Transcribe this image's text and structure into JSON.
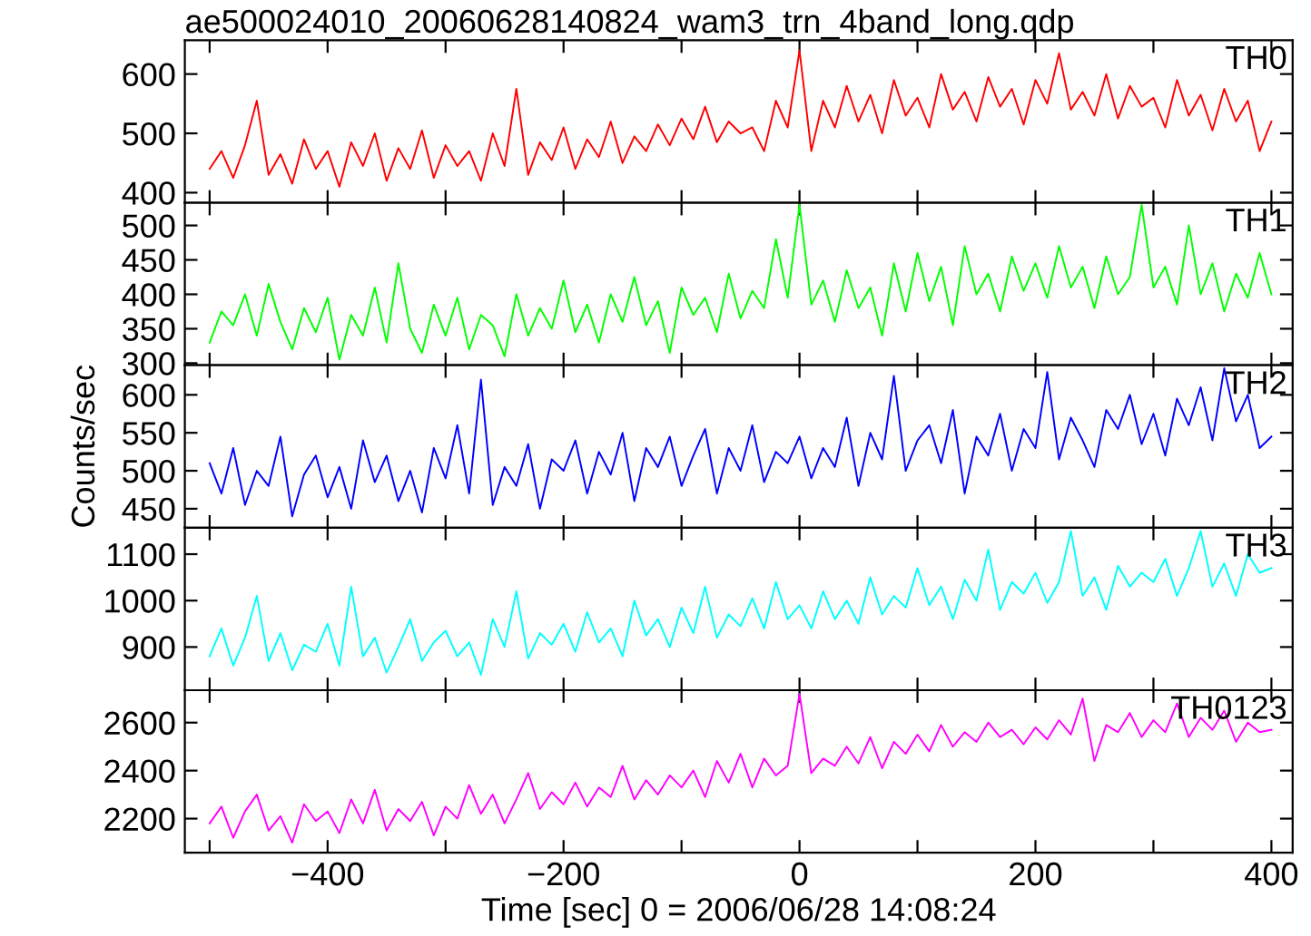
{
  "chart_data": [
    {
      "type": "line",
      "title": "ae500024010_20060628140824_wam3_trn_4band_long.qdp",
      "tick_labels": "y",
      "x": [
        -500,
        -490,
        -480,
        -470,
        -460,
        -450,
        -440,
        -430,
        -420,
        -410,
        -400,
        -390,
        -380,
        -370,
        -360,
        -350,
        -340,
        -330,
        -320,
        -310,
        -300,
        -290,
        -280,
        -270,
        -260,
        -250,
        -240,
        -230,
        -220,
        -210,
        -200,
        -190,
        -180,
        -170,
        -160,
        -150,
        -140,
        -130,
        -120,
        -110,
        -100,
        -90,
        -80,
        -70,
        -60,
        -50,
        -40,
        -30,
        -20,
        -10,
        0,
        10,
        20,
        30,
        40,
        50,
        60,
        70,
        80,
        90,
        100,
        110,
        120,
        130,
        140,
        150,
        160,
        170,
        180,
        190,
        200,
        210,
        220,
        230,
        240,
        250,
        260,
        270,
        280,
        290,
        300,
        310,
        320,
        330,
        340,
        350,
        360,
        370,
        380,
        390,
        400
      ],
      "xlim": [
        -521,
        418
      ],
      "xticks": [
        -500,
        -400,
        -300,
        -200,
        -100,
        0,
        100,
        200,
        300,
        400
      ],
      "ylim": [
        383,
        657
      ],
      "yticks": [
        400,
        500,
        600
      ],
      "series": [
        {
          "name": "TH0",
          "color": "#ff0000",
          "values": [
            440,
            470,
            425,
            480,
            555,
            430,
            465,
            415,
            490,
            440,
            470,
            410,
            485,
            445,
            500,
            420,
            475,
            440,
            505,
            425,
            480,
            445,
            470,
            420,
            500,
            445,
            575,
            430,
            485,
            455,
            510,
            440,
            490,
            460,
            520,
            450,
            495,
            470,
            515,
            480,
            525,
            490,
            545,
            485,
            520,
            500,
            510,
            470,
            555,
            510,
            640,
            470,
            555,
            510,
            580,
            520,
            565,
            500,
            590,
            530,
            560,
            510,
            600,
            540,
            570,
            520,
            595,
            545,
            575,
            515,
            590,
            550,
            635,
            540,
            570,
            530,
            600,
            525,
            580,
            545,
            560,
            510,
            590,
            530,
            565,
            505,
            575,
            520,
            555,
            470,
            520
          ]
        }
      ]
    },
    {
      "type": "line",
      "tick_labels": "y",
      "x": [
        -500,
        -490,
        -480,
        -470,
        -460,
        -450,
        -440,
        -430,
        -420,
        -410,
        -400,
        -390,
        -380,
        -370,
        -360,
        -350,
        -340,
        -330,
        -320,
        -310,
        -300,
        -290,
        -280,
        -270,
        -260,
        -250,
        -240,
        -230,
        -220,
        -210,
        -200,
        -190,
        -180,
        -170,
        -160,
        -150,
        -140,
        -130,
        -120,
        -110,
        -100,
        -90,
        -80,
        -70,
        -60,
        -50,
        -40,
        -30,
        -20,
        -10,
        0,
        10,
        20,
        30,
        40,
        50,
        60,
        70,
        80,
        90,
        100,
        110,
        120,
        130,
        140,
        150,
        160,
        170,
        180,
        190,
        200,
        210,
        220,
        230,
        240,
        250,
        260,
        270,
        280,
        290,
        300,
        310,
        320,
        330,
        340,
        350,
        360,
        370,
        380,
        390,
        400
      ],
      "xlim": [
        -521,
        418
      ],
      "xticks": [
        -500,
        -400,
        -300,
        -200,
        -100,
        0,
        100,
        200,
        300,
        400
      ],
      "ylim": [
        297,
        533
      ],
      "yticks": [
        300,
        350,
        400,
        450,
        500
      ],
      "series": [
        {
          "name": "TH1",
          "color": "#00ff00",
          "values": [
            330,
            375,
            355,
            400,
            340,
            415,
            360,
            320,
            380,
            345,
            395,
            305,
            370,
            340,
            410,
            330,
            445,
            350,
            315,
            385,
            340,
            395,
            320,
            370,
            355,
            310,
            400,
            340,
            380,
            350,
            420,
            345,
            385,
            330,
            400,
            360,
            425,
            355,
            390,
            315,
            410,
            370,
            395,
            345,
            430,
            365,
            405,
            380,
            480,
            395,
            530,
            385,
            420,
            360,
            435,
            380,
            410,
            340,
            445,
            375,
            460,
            390,
            440,
            355,
            470,
            400,
            430,
            375,
            455,
            405,
            445,
            395,
            470,
            410,
            440,
            380,
            455,
            400,
            425,
            530,
            410,
            440,
            385,
            500,
            400,
            445,
            375,
            430,
            395,
            460,
            400
          ]
        }
      ]
    },
    {
      "type": "line",
      "tick_labels": "y",
      "ylabel": "Counts/sec",
      "x": [
        -500,
        -490,
        -480,
        -470,
        -460,
        -450,
        -440,
        -430,
        -420,
        -410,
        -400,
        -390,
        -380,
        -370,
        -360,
        -350,
        -340,
        -330,
        -320,
        -310,
        -300,
        -290,
        -280,
        -270,
        -260,
        -250,
        -240,
        -230,
        -220,
        -210,
        -200,
        -190,
        -180,
        -170,
        -160,
        -150,
        -140,
        -130,
        -120,
        -110,
        -100,
        -90,
        -80,
        -70,
        -60,
        -50,
        -40,
        -30,
        -20,
        -10,
        0,
        10,
        20,
        30,
        40,
        50,
        60,
        70,
        80,
        90,
        100,
        110,
        120,
        130,
        140,
        150,
        160,
        170,
        180,
        190,
        200,
        210,
        220,
        230,
        240,
        250,
        260,
        270,
        280,
        290,
        300,
        310,
        320,
        330,
        340,
        350,
        360,
        370,
        380,
        390,
        400
      ],
      "xlim": [
        -521,
        418
      ],
      "xticks": [
        -500,
        -400,
        -300,
        -200,
        -100,
        0,
        100,
        200,
        300,
        400
      ],
      "ylim": [
        425,
        639
      ],
      "yticks": [
        450,
        500,
        550,
        600
      ],
      "series": [
        {
          "name": "TH2",
          "color": "#0000ff",
          "values": [
            510,
            470,
            530,
            455,
            500,
            480,
            545,
            440,
            495,
            520,
            465,
            505,
            450,
            540,
            485,
            520,
            460,
            500,
            445,
            530,
            490,
            560,
            470,
            620,
            455,
            505,
            480,
            535,
            450,
            515,
            500,
            540,
            470,
            525,
            495,
            550,
            460,
            530,
            505,
            545,
            480,
            520,
            555,
            470,
            530,
            500,
            560,
            485,
            525,
            510,
            545,
            490,
            530,
            505,
            570,
            480,
            550,
            515,
            625,
            500,
            540,
            560,
            510,
            580,
            470,
            545,
            520,
            575,
            500,
            555,
            530,
            630,
            515,
            570,
            540,
            505,
            580,
            555,
            600,
            535,
            575,
            520,
            595,
            560,
            610,
            540,
            635,
            565,
            600,
            530,
            545
          ]
        }
      ]
    },
    {
      "type": "line",
      "tick_labels": "y",
      "x": [
        -500,
        -490,
        -480,
        -470,
        -460,
        -450,
        -440,
        -430,
        -420,
        -410,
        -400,
        -390,
        -380,
        -370,
        -360,
        -350,
        -340,
        -330,
        -320,
        -310,
        -300,
        -290,
        -280,
        -270,
        -260,
        -250,
        -240,
        -230,
        -220,
        -210,
        -200,
        -190,
        -180,
        -170,
        -160,
        -150,
        -140,
        -130,
        -120,
        -110,
        -100,
        -90,
        -80,
        -70,
        -60,
        -50,
        -40,
        -30,
        -20,
        -10,
        0,
        10,
        20,
        30,
        40,
        50,
        60,
        70,
        80,
        90,
        100,
        110,
        120,
        130,
        140,
        150,
        160,
        170,
        180,
        190,
        200,
        210,
        220,
        230,
        240,
        250,
        260,
        270,
        280,
        290,
        300,
        310,
        320,
        330,
        340,
        350,
        360,
        370,
        380,
        390,
        400
      ],
      "xlim": [
        -521,
        418
      ],
      "xticks": [
        -500,
        -400,
        -300,
        -200,
        -100,
        0,
        100,
        200,
        300,
        400
      ],
      "ylim": [
        807,
        1157
      ],
      "yticks": [
        900,
        1000,
        1100
      ],
      "series": [
        {
          "name": "TH3",
          "color": "#00ffff",
          "values": [
            880,
            940,
            860,
            920,
            1010,
            870,
            930,
            850,
            905,
            890,
            950,
            860,
            1030,
            880,
            920,
            845,
            900,
            960,
            870,
            910,
            935,
            880,
            910,
            840,
            960,
            900,
            1020,
            875,
            930,
            905,
            950,
            890,
            975,
            910,
            940,
            880,
            1000,
            925,
            960,
            900,
            985,
            930,
            1030,
            920,
            970,
            945,
            1005,
            940,
            1040,
            960,
            990,
            940,
            1020,
            960,
            1000,
            950,
            1050,
            970,
            1010,
            985,
            1070,
            990,
            1030,
            960,
            1045,
            1000,
            1110,
            980,
            1040,
            1015,
            1060,
            995,
            1040,
            1150,
            1010,
            1050,
            980,
            1075,
            1030,
            1060,
            1040,
            1090,
            1010,
            1070,
            1150,
            1030,
            1080,
            1010,
            1100,
            1060,
            1070
          ]
        }
      ]
    },
    {
      "type": "line",
      "xlabel": "Time [sec] 0 = 2006/06/28 14:08:24",
      "x": [
        -500,
        -490,
        -480,
        -470,
        -460,
        -450,
        -440,
        -430,
        -420,
        -410,
        -400,
        -390,
        -380,
        -370,
        -360,
        -350,
        -340,
        -330,
        -320,
        -310,
        -300,
        -290,
        -280,
        -270,
        -260,
        -250,
        -240,
        -230,
        -220,
        -210,
        -200,
        -190,
        -180,
        -170,
        -160,
        -150,
        -140,
        -130,
        -120,
        -110,
        -100,
        -90,
        -80,
        -70,
        -60,
        -50,
        -40,
        -30,
        -20,
        -10,
        0,
        10,
        20,
        30,
        40,
        50,
        60,
        70,
        80,
        90,
        100,
        110,
        120,
        130,
        140,
        150,
        160,
        170,
        180,
        190,
        200,
        210,
        220,
        230,
        240,
        250,
        260,
        270,
        280,
        290,
        300,
        310,
        320,
        330,
        340,
        350,
        360,
        370,
        380,
        390,
        400
      ],
      "xlim": [
        -521,
        418
      ],
      "xticks": [
        {
          "value": -500,
          "label": null
        },
        {
          "value": -400,
          "label": "−400"
        },
        {
          "value": -300,
          "label": null
        },
        {
          "value": -200,
          "label": "−200"
        },
        {
          "value": -100,
          "label": null
        },
        0,
        {
          "value": 100,
          "label": null
        },
        200,
        {
          "value": 300,
          "label": null
        },
        400
      ],
      "ylim": [
        2058,
        2735
      ],
      "yticks": [
        2200,
        2400,
        2600
      ],
      "series": [
        {
          "name": "TH0123",
          "color": "#ff00ff",
          "values": [
            2180,
            2250,
            2120,
            2230,
            2300,
            2150,
            2210,
            2100,
            2260,
            2190,
            2230,
            2140,
            2280,
            2180,
            2320,
            2150,
            2240,
            2190,
            2270,
            2130,
            2250,
            2200,
            2340,
            2220,
            2300,
            2180,
            2280,
            2390,
            2240,
            2310,
            2260,
            2350,
            2250,
            2330,
            2290,
            2420,
            2280,
            2360,
            2300,
            2380,
            2330,
            2400,
            2290,
            2440,
            2350,
            2470,
            2330,
            2450,
            2380,
            2420,
            2720,
            2390,
            2450,
            2420,
            2500,
            2430,
            2540,
            2410,
            2520,
            2470,
            2550,
            2480,
            2590,
            2500,
            2560,
            2520,
            2600,
            2540,
            2570,
            2510,
            2580,
            2530,
            2610,
            2550,
            2700,
            2440,
            2590,
            2560,
            2640,
            2540,
            2610,
            2560,
            2680,
            2540,
            2620,
            2570,
            2650,
            2520,
            2600,
            2560,
            2570
          ]
        }
      ]
    }
  ]
}
